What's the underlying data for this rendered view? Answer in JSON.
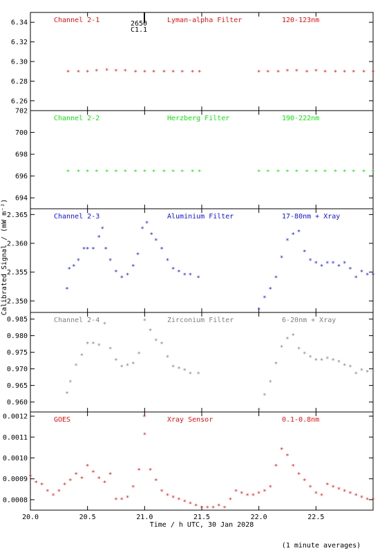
{
  "figure": {
    "xlabel": "Time / h UTC, 30 Jan 2028",
    "ylabel": "Calibrated Signal / (mW m⁻²)",
    "footnote": "(1 minute averages)",
    "xlim": [
      20.0,
      23.0
    ],
    "xticks": [
      "20.0",
      "20.5",
      "21.0",
      "21.5",
      "22.0",
      "22.5"
    ],
    "marker_label_top": "2650",
    "marker_label_bottom": "C1.1",
    "marker_time": 21.0
  },
  "chart_data": [
    {
      "type": "scatter",
      "labels": [
        "Channel 2-1",
        "Lyman-alpha Filter",
        "120-123nm"
      ],
      "color": "#e01010",
      "ylim": [
        6.25,
        6.35
      ],
      "yticks": [
        "6.26",
        "6.28",
        "6.30",
        "6.32",
        "6.34"
      ],
      "series": [
        {
          "x": [
            20.33,
            20.42,
            20.5,
            20.58,
            20.67,
            20.75,
            20.83,
            20.92,
            21.0,
            21.08,
            21.17,
            21.25,
            21.33,
            21.42,
            21.48
          ],
          "y": [
            6.289,
            6.289,
            6.289,
            6.29,
            6.291,
            6.29,
            6.29,
            6.289,
            6.289,
            6.289,
            6.289,
            6.289,
            6.289,
            6.289,
            6.289
          ]
        },
        {
          "x": [
            22.0,
            22.08,
            22.17,
            22.25,
            22.33,
            22.42,
            22.5,
            22.58,
            22.67,
            22.75,
            22.83,
            22.92,
            23.0
          ],
          "y": [
            6.289,
            6.289,
            6.289,
            6.29,
            6.29,
            6.289,
            6.29,
            6.289,
            6.289,
            6.289,
            6.289,
            6.289,
            6.289
          ]
        }
      ]
    },
    {
      "type": "scatter",
      "labels": [
        "Channel 2-2",
        "Herzberg Filter",
        "190-222nm"
      ],
      "color": "#10e010",
      "ylim": [
        693.0,
        702.0
      ],
      "yticks": [
        "694",
        "696",
        "698",
        "700",
        "702"
      ],
      "series": [
        {
          "x": [
            20.33,
            20.42,
            20.5,
            20.58,
            20.67,
            20.75,
            20.83,
            20.92,
            21.0,
            21.08,
            21.17,
            21.25,
            21.33,
            21.42,
            21.48
          ],
          "y": [
            696.4,
            696.4,
            696.4,
            696.4,
            696.4,
            696.4,
            696.4,
            696.4,
            696.4,
            696.4,
            696.4,
            696.4,
            696.4,
            696.4,
            696.4
          ]
        },
        {
          "x": [
            22.0,
            22.08,
            22.17,
            22.25,
            22.33,
            22.42,
            22.5,
            22.58,
            22.67,
            22.75,
            22.83,
            22.92,
            23.0
          ],
          "y": [
            696.4,
            696.4,
            696.4,
            696.4,
            696.4,
            696.4,
            696.4,
            696.4,
            696.4,
            696.4,
            696.4,
            696.4,
            696.4
          ]
        }
      ]
    },
    {
      "type": "scatter",
      "labels": [
        "Channel 2-3",
        "Aluminium Filter",
        "17-80nm + Xray"
      ],
      "color": "#1010e0",
      "ylim": [
        2.348,
        2.366
      ],
      "yticks": [
        "2.350",
        "2.355",
        "2.360",
        "2.365"
      ],
      "series": [
        {
          "x": [
            20.32,
            20.34,
            20.38,
            20.42,
            20.47,
            20.5,
            20.55,
            20.6,
            20.63,
            20.66,
            20.7,
            20.75,
            20.8,
            20.85,
            20.9,
            20.94,
            20.98,
            21.02,
            21.06,
            21.1,
            21.15,
            21.2,
            21.25,
            21.3,
            21.35,
            21.4,
            21.47
          ],
          "y": [
            2.352,
            2.3555,
            2.356,
            2.357,
            2.359,
            2.359,
            2.359,
            2.361,
            2.3625,
            2.359,
            2.357,
            2.355,
            2.354,
            2.3545,
            2.356,
            2.358,
            2.3625,
            2.3635,
            2.3615,
            2.3605,
            2.359,
            2.357,
            2.3555,
            2.355,
            2.3545,
            2.3545,
            2.354
          ]
        },
        {
          "x": [
            22.0,
            22.05,
            22.1,
            22.15,
            22.2,
            22.25,
            22.3,
            22.35,
            22.4,
            22.45,
            22.5,
            22.55,
            22.6,
            22.65,
            22.7,
            22.75,
            22.8,
            22.85,
            22.9,
            22.95,
            23.0
          ],
          "y": [
            2.3485,
            2.3505,
            2.352,
            2.354,
            2.3575,
            2.3605,
            2.3615,
            2.362,
            2.3585,
            2.357,
            2.3565,
            2.356,
            2.3565,
            2.3565,
            2.356,
            2.3565,
            2.3555,
            2.354,
            2.355,
            2.3545,
            2.3545
          ]
        }
      ]
    },
    {
      "type": "scatter",
      "labels": [
        "Channel 2-4",
        "Zirconium Filter",
        "6-20nm + Xray"
      ],
      "color": "#808080",
      "ylim": [
        0.957,
        0.987
      ],
      "yticks": [
        "0.960",
        "0.965",
        "0.970",
        "0.975",
        "0.980",
        "0.985"
      ],
      "series": [
        {
          "x": [
            20.32,
            20.35,
            20.4,
            20.45,
            20.5,
            20.55,
            20.6,
            20.65,
            20.7,
            20.75,
            20.8,
            20.85,
            20.9,
            20.95,
            21.0,
            21.05,
            21.1,
            21.15,
            21.2,
            21.25,
            21.3,
            21.35,
            21.4,
            21.47
          ],
          "y": [
            0.9625,
            0.966,
            0.971,
            0.974,
            0.9775,
            0.9775,
            0.977,
            0.9835,
            0.976,
            0.9725,
            0.9705,
            0.971,
            0.9715,
            0.9745,
            0.9845,
            0.9815,
            0.9785,
            0.9775,
            0.9735,
            0.9705,
            0.97,
            0.9695,
            0.9685,
            0.9685
          ]
        },
        {
          "x": [
            22.0,
            22.05,
            22.1,
            22.15,
            22.2,
            22.25,
            22.3,
            22.35,
            22.4,
            22.45,
            22.5,
            22.55,
            22.6,
            22.65,
            22.7,
            22.75,
            22.8,
            22.85,
            22.9,
            22.95,
            23.0
          ],
          "y": [
            0.9575,
            0.962,
            0.966,
            0.9715,
            0.9765,
            0.979,
            0.98,
            0.976,
            0.9745,
            0.9735,
            0.9725,
            0.9725,
            0.973,
            0.9725,
            0.972,
            0.971,
            0.9705,
            0.9685,
            0.9695,
            0.969,
            0.969
          ]
        }
      ]
    },
    {
      "type": "scatter",
      "labels": [
        "GOES",
        "Xray Sensor",
        "0.1-0.8nm"
      ],
      "color": "#e01010",
      "ylim": [
        0.00075,
        0.00122
      ],
      "yticks": [
        "0.0008",
        "0.0009",
        "0.0010",
        "0.0011",
        "0.0012"
      ],
      "series": [
        {
          "x": [
            20.0,
            20.05,
            20.1,
            20.15,
            20.2,
            20.25,
            20.3,
            20.35,
            20.4,
            20.45,
            20.5,
            20.55,
            20.6,
            20.65,
            20.7,
            20.75,
            20.8,
            20.85,
            20.9,
            20.95,
            21.0,
            21.05,
            21.1,
            21.15,
            21.2,
            21.25,
            21.3,
            21.35,
            21.4,
            21.45,
            21.5,
            21.55,
            21.6,
            21.65,
            21.7,
            21.75,
            21.8,
            21.85,
            21.9,
            21.95,
            22.0,
            22.05,
            22.1,
            22.15,
            22.2,
            22.25,
            22.3,
            22.35,
            22.4,
            22.45,
            22.5,
            22.55,
            22.6,
            22.65,
            22.7,
            22.75,
            22.8,
            22.85,
            22.9,
            22.95,
            23.0
          ],
          "y": [
            0.00091,
            0.00088,
            0.00087,
            0.00084,
            0.00082,
            0.00084,
            0.00087,
            0.00089,
            0.00092,
            0.0009,
            0.00096,
            0.00093,
            0.0009,
            0.00088,
            0.00092,
            0.0008,
            0.0008,
            0.00081,
            0.00086,
            0.00094,
            0.00111,
            0.00094,
            0.00089,
            0.00084,
            0.00082,
            0.00081,
            0.0008,
            0.00079,
            0.00078,
            0.00077,
            0.00076,
            0.00076,
            0.00076,
            0.00077,
            0.00076,
            0.0008,
            0.00084,
            0.00083,
            0.00082,
            0.00082,
            0.00083,
            0.00084,
            0.00086,
            0.00096,
            0.00104,
            0.00101,
            0.00096,
            0.00092,
            0.00089,
            0.00086,
            0.00083,
            0.00082,
            0.00087,
            0.00086,
            0.00085,
            0.00084,
            0.00083,
            0.00082,
            0.00081,
            0.0008,
            0.0008
          ]
        }
      ]
    }
  ]
}
